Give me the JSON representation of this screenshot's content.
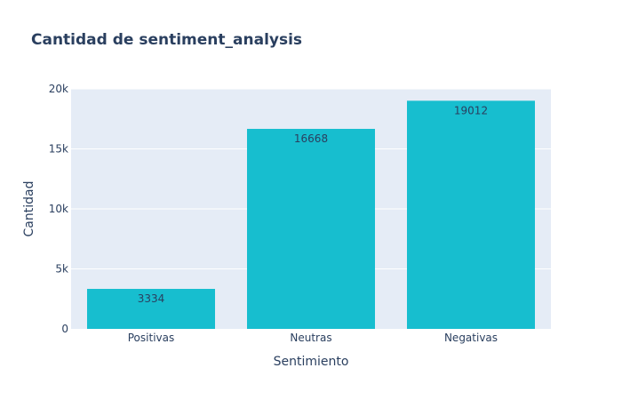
{
  "chart_data": {
    "type": "bar",
    "title": "Cantidad de sentiment_analysis",
    "xlabel": "Sentimiento",
    "ylabel": "Cantidad",
    "categories": [
      "Positivas",
      "Neutras",
      "Negativas"
    ],
    "values": [
      3334,
      16668,
      19012
    ],
    "value_labels": [
      "3334",
      "16668",
      "19012"
    ],
    "ylim": [
      0,
      20000
    ],
    "yticks": [
      0,
      5000,
      10000,
      15000,
      20000
    ],
    "ytick_labels": [
      "0",
      "5k",
      "10k",
      "15k",
      "20k"
    ],
    "grid": true,
    "legend": "none",
    "colors": {
      "bar": "#17becf",
      "plot_background": "#e5ecf6",
      "grid": "#ffffff",
      "text": "#2a3f5f"
    }
  }
}
